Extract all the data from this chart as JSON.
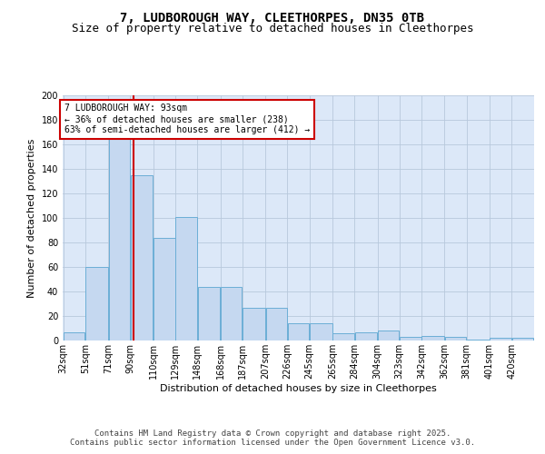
{
  "title_line1": "7, LUDBOROUGH WAY, CLEETHORPES, DN35 0TB",
  "title_line2": "Size of property relative to detached houses in Cleethorpes",
  "xlabel": "Distribution of detached houses by size in Cleethorpes",
  "ylabel": "Number of detached properties",
  "bar_values": [
    7,
    60,
    170,
    135,
    84,
    101,
    44,
    44,
    27,
    27,
    14,
    14,
    6,
    7,
    8,
    3,
    4,
    3,
    1,
    2,
    2
  ],
  "bin_edges": [
    32,
    51,
    71,
    90,
    110,
    129,
    148,
    168,
    187,
    207,
    226,
    245,
    265,
    284,
    304,
    323,
    342,
    362,
    381,
    401,
    420
  ],
  "tick_labels": [
    "32sqm",
    "51sqm",
    "71sqm",
    "90sqm",
    "110sqm",
    "129sqm",
    "148sqm",
    "168sqm",
    "187sqm",
    "207sqm",
    "226sqm",
    "245sqm",
    "265sqm",
    "284sqm",
    "304sqm",
    "323sqm",
    "342sqm",
    "362sqm",
    "381sqm",
    "401sqm",
    "420sqm"
  ],
  "bar_color": "#c5d8f0",
  "bar_edge_color": "#6baed6",
  "red_line_x": 93,
  "annotation_text": "7 LUDBOROUGH WAY: 93sqm\n← 36% of detached houses are smaller (238)\n63% of semi-detached houses are larger (412) →",
  "annotation_box_color": "#ffffff",
  "annotation_box_edge_color": "#cc0000",
  "vline_color": "#cc0000",
  "background_color": "#dce8f8",
  "ylim": [
    0,
    200
  ],
  "yticks": [
    0,
    20,
    40,
    60,
    80,
    100,
    120,
    140,
    160,
    180,
    200
  ],
  "footer_text": "Contains HM Land Registry data © Crown copyright and database right 2025.\nContains public sector information licensed under the Open Government Licence v3.0.",
  "title_fontsize": 10,
  "subtitle_fontsize": 9,
  "axis_label_fontsize": 8,
  "tick_fontsize": 7,
  "annotation_fontsize": 7,
  "footer_fontsize": 6.5
}
